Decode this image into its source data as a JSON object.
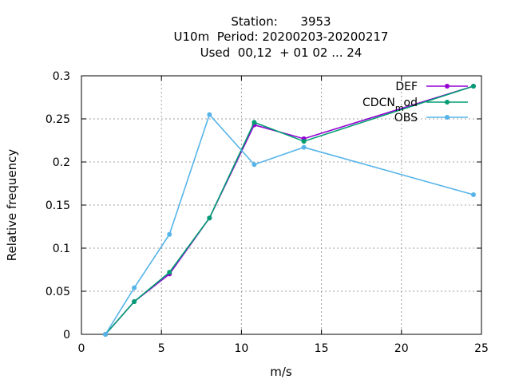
{
  "chart_data": {
    "type": "line",
    "title_lines": [
      "Station:      3953",
      "U10m  Period: 20200203-20200217",
      "Used  00,12  + 01 02 ... 24"
    ],
    "xlabel": "m/s",
    "ylabel": "Relative frequency",
    "xlim": [
      0,
      25
    ],
    "ylim": [
      0,
      0.3
    ],
    "x_ticks": [
      0,
      5,
      10,
      15,
      20,
      25
    ],
    "y_ticks": [
      0,
      0.05,
      0.1,
      0.15,
      0.2,
      0.25,
      0.3
    ],
    "grid": true,
    "legend_position": "top-right",
    "series": [
      {
        "name": "DEF",
        "color": "#9400d3",
        "x": [
          1.5,
          3.3,
          5.5,
          8.0,
          10.8,
          13.9,
          24.5
        ],
        "y": [
          0.0,
          0.038,
          0.07,
          0.135,
          0.243,
          0.227,
          0.288
        ]
      },
      {
        "name": "CDCN",
        "name_sub": "m",
        "name_tail": "od",
        "color": "#009e73",
        "x": [
          1.5,
          3.3,
          5.5,
          8.0,
          10.8,
          13.9,
          24.5
        ],
        "y": [
          0.0,
          0.038,
          0.072,
          0.135,
          0.246,
          0.224,
          0.288
        ]
      },
      {
        "name": "OBS",
        "color": "#56b4e9",
        "x": [
          1.5,
          3.3,
          5.5,
          8.0,
          10.8,
          13.9,
          24.5
        ],
        "y": [
          0.0,
          0.054,
          0.116,
          0.255,
          0.197,
          0.217,
          0.162
        ]
      }
    ]
  }
}
